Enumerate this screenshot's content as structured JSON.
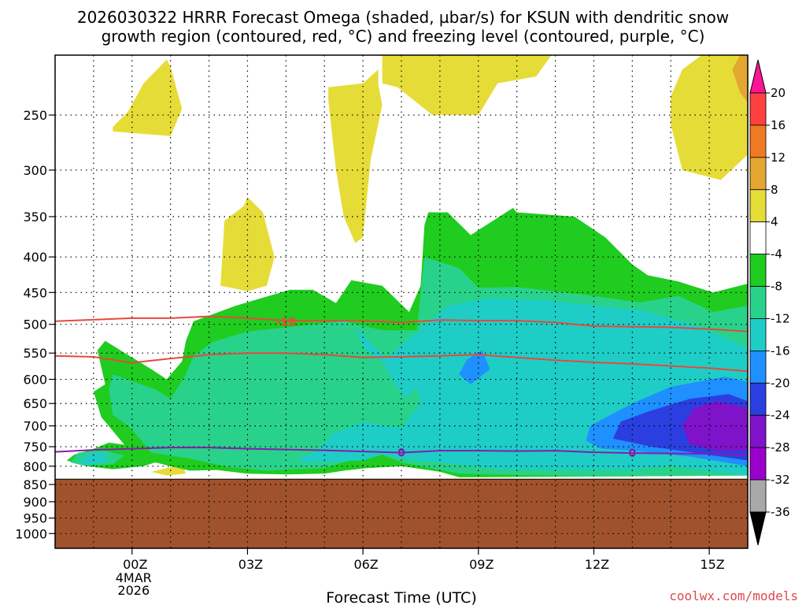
{
  "colors": {
    "background": "#ffffff",
    "ground": "#a0522d",
    "isotherm_red": "#e8483d",
    "freezing_purple": "#8a1ab0",
    "credit": "#e0474c",
    "grid": "#000000"
  },
  "chart_data": {
    "type": "heatmap",
    "title_lines": [
      "2026030322 HRRR Forecast Omega (shaded, µbar/s) for KSUN with dendritic snow",
      "growth region (contoured, red, °C) and freezing level (contoured, purple, °C)"
    ],
    "xlabel": "Forecast Time (UTC)",
    "credit": "coolwx.com/models",
    "ylabel": "",
    "y_scale": "log-pressure",
    "y_inverted": true,
    "xlim": [
      -2,
      16
    ],
    "ylim_hPa": [
      1050,
      205
    ],
    "x_ticks": [
      {
        "value": 0,
        "label": "00Z",
        "sub": [
          "4MAR",
          "2026"
        ]
      },
      {
        "value": 3,
        "label": "03Z",
        "sub": []
      },
      {
        "value": 6,
        "label": "06Z",
        "sub": []
      },
      {
        "value": 9,
        "label": "09Z",
        "sub": []
      },
      {
        "value": 12,
        "label": "12Z",
        "sub": []
      },
      {
        "value": 15,
        "label": "15Z",
        "sub": []
      }
    ],
    "y_ticks": [
      250,
      300,
      350,
      400,
      450,
      500,
      550,
      600,
      650,
      700,
      750,
      800,
      850,
      900,
      950,
      1000
    ],
    "grid": true,
    "ground_top_hPa": 835,
    "colorbar": {
      "levels": [
        20,
        16,
        12,
        8,
        4,
        -4,
        -8,
        -12,
        -16,
        -20,
        -24,
        -28,
        -32,
        -36
      ],
      "colors": [
        "#ff1493",
        "#ff4040",
        "#f07a23",
        "#e3a630",
        "#e6dc38",
        "#ffffff",
        "#1fcc1f",
        "#29d28a",
        "#1ecdc6",
        "#1e90ff",
        "#2b3fe0",
        "#7f13c9",
        "#9a00cc",
        "#a8a8a8",
        "#000000"
      ]
    },
    "omega_regions": [
      {
        "fill": "#e6dc38",
        "points": [
          [
            -0.5,
            260
          ],
          [
            -0.1,
            247
          ],
          [
            0.3,
            225
          ],
          [
            0.9,
            208
          ],
          [
            1.0,
            213
          ],
          [
            1.3,
            245
          ],
          [
            1.0,
            268
          ],
          [
            -0.5,
            264
          ]
        ]
      },
      {
        "fill": "#e6dc38",
        "points": [
          [
            2.3,
            440
          ],
          [
            2.4,
            355
          ],
          [
            2.9,
            338
          ],
          [
            3.0,
            328
          ],
          [
            3.4,
            345
          ],
          [
            3.7,
            400
          ],
          [
            3.5,
            440
          ],
          [
            3.0,
            448
          ]
        ]
      },
      {
        "fill": "#e6dc38",
        "points": [
          [
            5.1,
            238
          ],
          [
            5.1,
            228
          ],
          [
            6.0,
            225
          ],
          [
            6.4,
            215
          ],
          [
            6.4,
            226
          ],
          [
            6.5,
            242
          ],
          [
            6.2,
            290
          ],
          [
            6.0,
            375
          ],
          [
            5.8,
            382
          ],
          [
            5.5,
            350
          ],
          [
            5.3,
            300
          ]
        ]
      },
      {
        "fill": "#e6dc38",
        "points": [
          [
            6.5,
            225
          ],
          [
            6.5,
            205
          ],
          [
            10.9,
            205
          ],
          [
            10.5,
            220
          ],
          [
            9.5,
            225
          ],
          [
            9.0,
            250
          ],
          [
            7.8,
            250
          ],
          [
            6.9,
            228
          ]
        ]
      },
      {
        "fill": "#e6dc38",
        "points": [
          [
            14.0,
            258
          ],
          [
            14.0,
            235
          ],
          [
            14.3,
            215
          ],
          [
            14.8,
            205
          ],
          [
            16.0,
            205
          ],
          [
            16.0,
            285
          ],
          [
            15.3,
            310
          ],
          [
            14.3,
            300
          ]
        ]
      },
      {
        "fill": "#e3a630",
        "points": [
          [
            15.6,
            215
          ],
          [
            15.8,
            205
          ],
          [
            16.0,
            205
          ],
          [
            16.0,
            240
          ],
          [
            15.8,
            232
          ]
        ]
      },
      {
        "fill": "#e6dc38",
        "points": [
          [
            0.5,
            815
          ],
          [
            1.3,
            795
          ],
          [
            1.4,
            820
          ],
          [
            0.9,
            825
          ]
        ]
      },
      {
        "fill": "#1fcc1f",
        "points": [
          [
            -0.7,
            610
          ],
          [
            -0.9,
            545
          ],
          [
            -0.7,
            528
          ],
          [
            -0.3,
            545
          ],
          [
            0.5,
            580
          ],
          [
            0.9,
            600
          ],
          [
            1.3,
            565
          ],
          [
            1.4,
            528
          ],
          [
            1.6,
            495
          ],
          [
            2.7,
            470
          ],
          [
            4.1,
            446
          ],
          [
            4.7,
            446
          ],
          [
            5.3,
            466
          ],
          [
            5.7,
            432
          ],
          [
            6.5,
            440
          ],
          [
            7.2,
            480
          ],
          [
            7.5,
            440
          ],
          [
            7.6,
            360
          ],
          [
            7.7,
            345
          ],
          [
            8.2,
            345
          ],
          [
            8.8,
            372
          ],
          [
            9.9,
            340
          ],
          [
            10.0,
            345
          ],
          [
            11.5,
            350
          ],
          [
            12.3,
            375
          ],
          [
            13.0,
            410
          ],
          [
            13.4,
            425
          ],
          [
            14.2,
            434
          ],
          [
            15.1,
            450
          ],
          [
            16.0,
            437
          ],
          [
            16.0,
            825
          ],
          [
            12.0,
            828
          ],
          [
            8.5,
            830
          ],
          [
            8.0,
            815
          ],
          [
            7.0,
            800
          ],
          [
            6.1,
            805
          ],
          [
            5.5,
            812
          ],
          [
            5.0,
            820
          ],
          [
            4.0,
            822
          ],
          [
            3.0,
            820
          ],
          [
            2.2,
            810
          ],
          [
            1.5,
            812
          ],
          [
            1.0,
            800
          ],
          [
            0.6,
            790
          ],
          [
            0.3,
            800
          ],
          [
            -0.2,
            805
          ],
          [
            -0.5,
            808
          ],
          [
            -1.2,
            800
          ],
          [
            -1.7,
            785
          ],
          [
            -1.5,
            770
          ],
          [
            -1.0,
            755
          ],
          [
            -0.6,
            740
          ],
          [
            -0.2,
            745
          ],
          [
            -0.8,
            680
          ],
          [
            -1.0,
            625
          ]
        ]
      },
      {
        "fill": "#29d28a",
        "points": [
          [
            -0.6,
            620
          ],
          [
            -0.5,
            590
          ],
          [
            0.6,
            620
          ],
          [
            1.0,
            640
          ],
          [
            1.4,
            590
          ],
          [
            1.6,
            555
          ],
          [
            2.1,
            530
          ],
          [
            3.0,
            512
          ],
          [
            4.0,
            505
          ],
          [
            5.5,
            495
          ],
          [
            6.5,
            510
          ],
          [
            7.4,
            510
          ],
          [
            7.6,
            400
          ],
          [
            8.5,
            415
          ],
          [
            9.0,
            443
          ],
          [
            10.0,
            442
          ],
          [
            12.0,
            455
          ],
          [
            13.2,
            465
          ],
          [
            14.2,
            455
          ],
          [
            15.1,
            480
          ],
          [
            16.0,
            470
          ],
          [
            16.0,
            825
          ],
          [
            12.0,
            828
          ],
          [
            8.5,
            820
          ],
          [
            7.0,
            790
          ],
          [
            6.5,
            770
          ],
          [
            6.0,
            775
          ],
          [
            5.0,
            805
          ],
          [
            3.5,
            812
          ],
          [
            2.5,
            802
          ],
          [
            1.5,
            780
          ],
          [
            0.5,
            765
          ],
          [
            0.2,
            730
          ],
          [
            -0.1,
            700
          ],
          [
            -0.5,
            675
          ]
        ]
      },
      {
        "fill": "#29d28a",
        "points": [
          [
            -1.6,
            790
          ],
          [
            -1.4,
            765
          ],
          [
            -0.8,
            758
          ],
          [
            -0.2,
            772
          ],
          [
            -0.5,
            795
          ],
          [
            -1.2,
            800
          ]
        ]
      },
      {
        "fill": "#1ecdc6",
        "points": [
          [
            5.8,
            505
          ],
          [
            6.6,
            560
          ],
          [
            8.2,
            470
          ],
          [
            9.3,
            458
          ],
          [
            10.8,
            462
          ],
          [
            13.3,
            478
          ],
          [
            14.8,
            505
          ],
          [
            16.0,
            540
          ],
          [
            16.0,
            825
          ],
          [
            14.0,
            800
          ],
          [
            13.0,
            810
          ],
          [
            9.5,
            808
          ],
          [
            8.0,
            790
          ],
          [
            7.0,
            780
          ],
          [
            6.5,
            770
          ],
          [
            6.0,
            785
          ],
          [
            4.5,
            790
          ],
          [
            4.3,
            782
          ],
          [
            4.8,
            760
          ],
          [
            5.2,
            720
          ],
          [
            6.0,
            690
          ],
          [
            7.0,
            705
          ],
          [
            7.5,
            650
          ],
          [
            7.4,
            615
          ],
          [
            7.1,
            640
          ],
          [
            6.8,
            605
          ],
          [
            6.5,
            565
          ],
          [
            6.0,
            540
          ]
        ]
      },
      {
        "fill": "#1ecdc6",
        "points": [
          [
            -1.4,
            785
          ],
          [
            -1.0,
            765
          ],
          [
            -0.6,
            768
          ],
          [
            -0.7,
            790
          ],
          [
            -1.2,
            795
          ]
        ]
      },
      {
        "fill": "#1e90ff",
        "points": [
          [
            8.7,
            562
          ],
          [
            9.1,
            545
          ],
          [
            9.3,
            580
          ],
          [
            8.8,
            610
          ],
          [
            8.5,
            590
          ]
        ]
      },
      {
        "fill": "#1e90ff",
        "points": [
          [
            11.9,
            700
          ],
          [
            13.0,
            650
          ],
          [
            14.0,
            615
          ],
          [
            15.4,
            595
          ],
          [
            16.0,
            605
          ],
          [
            16.0,
            800
          ],
          [
            14.5,
            775
          ],
          [
            13.0,
            760
          ],
          [
            12.2,
            755
          ],
          [
            11.8,
            735
          ]
        ]
      },
      {
        "fill": "#2b3fe0",
        "points": [
          [
            12.5,
            730
          ],
          [
            12.7,
            690
          ],
          [
            13.5,
            665
          ],
          [
            14.5,
            640
          ],
          [
            15.5,
            630
          ],
          [
            16.0,
            645
          ],
          [
            16.0,
            785
          ],
          [
            14.8,
            768
          ],
          [
            13.5,
            750
          ]
        ]
      },
      {
        "fill": "#7f13c9",
        "points": [
          [
            14.3,
            700
          ],
          [
            14.6,
            660
          ],
          [
            15.2,
            645
          ],
          [
            16.0,
            660
          ],
          [
            16.0,
            760
          ],
          [
            15.2,
            760
          ],
          [
            14.5,
            745
          ]
        ]
      }
    ],
    "contours": [
      {
        "color": "#e8483d",
        "value_label": "-18",
        "label_at": [
          4.0,
          496
        ],
        "points": [
          [
            -2,
            495
          ],
          [
            0,
            490
          ],
          [
            1,
            490
          ],
          [
            2,
            487
          ],
          [
            3,
            490
          ],
          [
            4,
            494
          ],
          [
            5,
            494
          ],
          [
            6,
            494
          ],
          [
            7,
            497
          ],
          [
            8,
            493
          ],
          [
            9,
            494
          ],
          [
            10,
            494
          ],
          [
            11,
            497
          ],
          [
            12,
            503
          ],
          [
            13,
            504
          ],
          [
            14,
            505
          ],
          [
            15,
            508
          ],
          [
            16,
            512
          ]
        ]
      },
      {
        "color": "#e8483d",
        "value_label": "",
        "points": [
          [
            -2,
            555
          ],
          [
            -1,
            557
          ],
          [
            0,
            568
          ],
          [
            1,
            560
          ],
          [
            2,
            553
          ],
          [
            3,
            550
          ],
          [
            4,
            550
          ],
          [
            5,
            553
          ],
          [
            6,
            558
          ],
          [
            7,
            557
          ],
          [
            8,
            555
          ],
          [
            9,
            553
          ],
          [
            10,
            558
          ],
          [
            11,
            563
          ],
          [
            12,
            567
          ],
          [
            13,
            570
          ],
          [
            14,
            574
          ],
          [
            15,
            578
          ],
          [
            16,
            584
          ]
        ]
      },
      {
        "color": "#8a1ab0",
        "value_label": "0",
        "label_at": [
          7.0,
          765
        ],
        "points": [
          [
            -2,
            763
          ],
          [
            -1,
            758
          ],
          [
            0,
            755
          ],
          [
            1,
            752
          ],
          [
            2,
            752
          ],
          [
            3,
            755
          ],
          [
            4,
            757
          ],
          [
            5,
            759
          ],
          [
            6,
            762
          ],
          [
            7,
            765
          ],
          [
            8,
            760
          ],
          [
            9,
            760
          ],
          [
            10,
            761
          ],
          [
            11,
            760
          ],
          [
            12,
            764
          ],
          [
            13,
            766
          ],
          [
            14,
            767
          ],
          [
            15,
            768
          ],
          [
            16,
            772
          ]
        ]
      }
    ],
    "extra_labels": [
      {
        "text": "0",
        "color": "#8a1ab0",
        "at": [
          13.0,
          766
        ]
      }
    ]
  }
}
